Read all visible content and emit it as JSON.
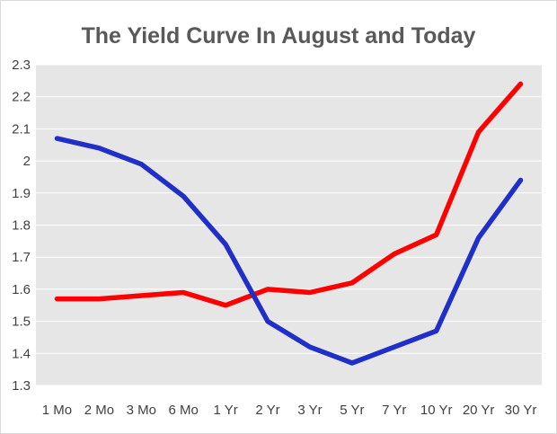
{
  "chart_data": {
    "type": "line",
    "title": "The Yield Curve In August and Today",
    "xlabel": "",
    "ylabel": "",
    "categories": [
      "1 Mo",
      "2 Mo",
      "3 Mo",
      "6 Mo",
      "1 Yr",
      "2 Yr",
      "3 Yr",
      "5 Yr",
      "7 Yr",
      "10 Yr",
      "20 Yr",
      "30 Yr"
    ],
    "ylim": [
      1.3,
      2.3
    ],
    "yticks": [
      "1.3",
      "1.4",
      "1.5",
      "1.6",
      "1.7",
      "1.8",
      "1.9",
      "2",
      "2.1",
      "2.2",
      "2.3"
    ],
    "grid": true,
    "legend": "none",
    "plot_background": "#e7e6e6",
    "series": [
      {
        "color": "#ff0000",
        "values": [
          1.57,
          1.57,
          1.58,
          1.59,
          1.55,
          1.6,
          1.59,
          1.62,
          1.71,
          1.77,
          2.09,
          2.24
        ]
      },
      {
        "color": "#1f2fc7",
        "values": [
          2.07,
          2.04,
          1.99,
          1.89,
          1.74,
          1.5,
          1.42,
          1.37,
          1.42,
          1.47,
          1.76,
          1.94
        ]
      }
    ]
  }
}
